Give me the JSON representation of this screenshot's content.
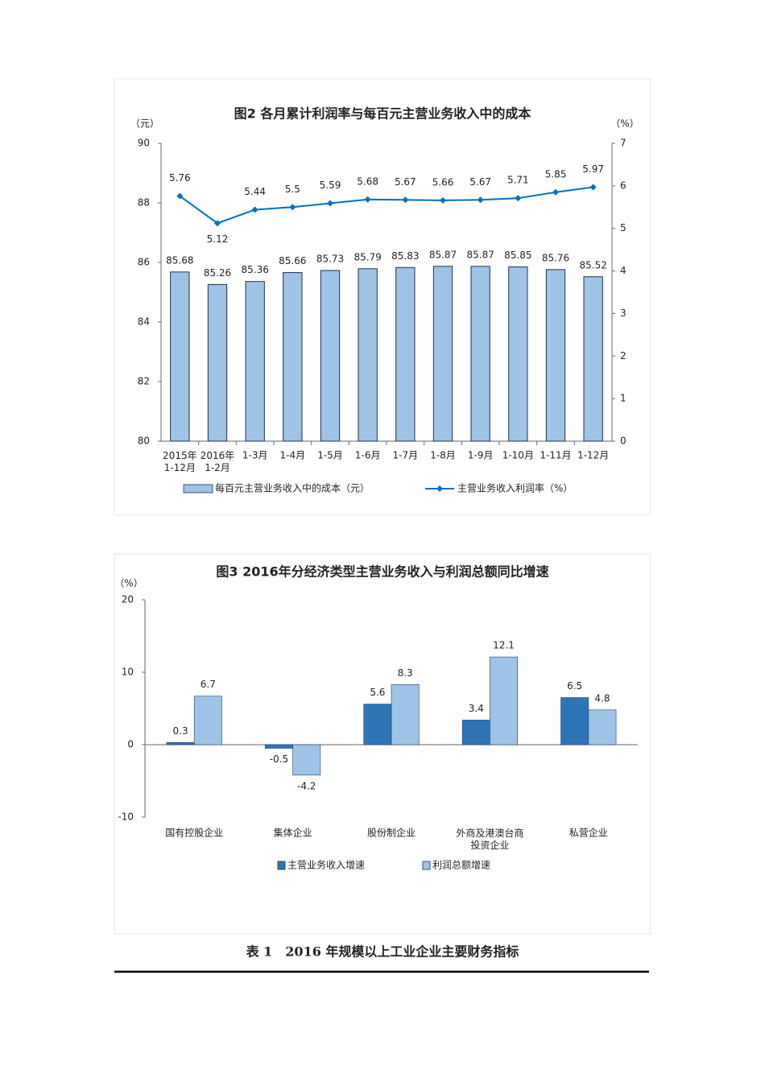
{
  "chart_data": [
    {
      "type": "bar",
      "title": "图2 各月累计利润率与每百元主营业务收入中的成本",
      "y_unit": "（元）",
      "y2_unit": "（%）",
      "categories": [
        "2015年\n1-12月",
        "2016年\n1-2月",
        "1-3月",
        "1-4月",
        "1-5月",
        "1-6月",
        "1-7月",
        "1-8月",
        "1-9月",
        "1-10月",
        "1-11月",
        "1-12月"
      ],
      "series": [
        {
          "name": "每百元主营业务收入中的成本（元）",
          "color": "#9dc3e6",
          "values": [
            85.68,
            85.26,
            85.36,
            85.66,
            85.73,
            85.79,
            85.83,
            85.87,
            85.87,
            85.85,
            85.76,
            85.52
          ]
        },
        {
          "name": "主营业务收入利润率（%）",
          "type": "line",
          "axis": "y2",
          "color": "#0070c0",
          "values": [
            5.76,
            5.12,
            5.44,
            5.5,
            5.59,
            5.68,
            5.67,
            5.66,
            5.67,
            5.71,
            5.85,
            5.97
          ]
        }
      ],
      "ylim": [
        80,
        90
      ],
      "yticks": [
        80,
        82,
        84,
        86,
        88,
        90
      ],
      "y2lim": [
        0,
        7
      ],
      "y2ticks": [
        0,
        1,
        2,
        3,
        4,
        5,
        6,
        7
      ],
      "data_labels": true,
      "legend": "bottom"
    },
    {
      "type": "bar",
      "title": "图3 2016年分经济类型主营业务收入与利润总额同比增速",
      "y_unit": "（%）",
      "categories": [
        "国有控股企业",
        "集体企业",
        "股份制企业",
        "外商及港澳台商\n投资企业",
        "私营企业"
      ],
      "series": [
        {
          "name": "主营业务收入增速",
          "color": "#2e75b6",
          "values": [
            0.3,
            -0.5,
            5.6,
            3.4,
            6.5
          ]
        },
        {
          "name": "利润总额增速",
          "color": "#9dc3e6",
          "values": [
            6.7,
            -4.2,
            8.3,
            12.1,
            4.8
          ]
        }
      ],
      "ylim": [
        -10,
        20
      ],
      "yticks": [
        -10,
        0,
        10,
        20
      ],
      "data_labels": true,
      "legend": "bottom"
    }
  ],
  "caption": "表 1　2016 年规模以上工业企业主要财务指标"
}
